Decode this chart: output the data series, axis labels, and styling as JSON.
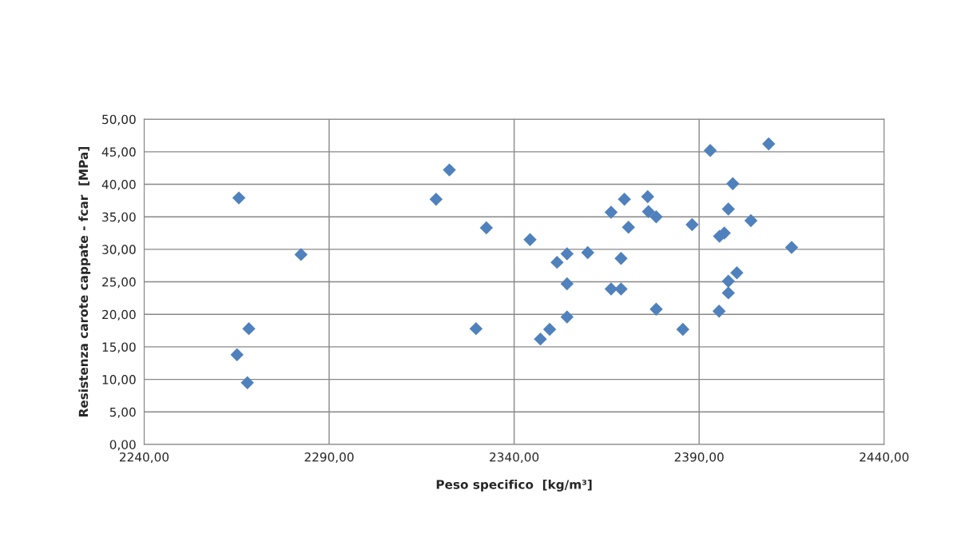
{
  "chart_data": {
    "type": "scatter",
    "xlabel": "Peso specifico  [kg/m³]",
    "ylabel": "Resistenza carote cappate - fcar  [MPa]",
    "series": [
      {
        "color": "#4f81bd",
        "x": [
          2265.6,
          2282.4,
          2268.3,
          2265.1,
          2267.9,
          2322.5,
          2318.9,
          2332.5,
          2344.3,
          2354.3,
          2351.6,
          2359.9,
          2354.3,
          2354.3,
          2349.6,
          2347.1,
          2329.7,
          2366.2,
          2369.8,
          2376.1,
          2376.3,
          2378.4,
          2370.9,
          2368.9,
          2366.2,
          2368.9,
          2378.4,
          2385.6,
          2388.1,
          2393.0,
          2408.8,
          2399.1,
          2397.9,
          2404.0,
          2396.8,
          2395.5,
          2415.0,
          2400.2,
          2397.9,
          2397.9,
          2395.4
        ],
        "values": [
          37.9,
          29.2,
          17.8,
          13.8,
          9.5,
          42.2,
          37.7,
          33.3,
          31.5,
          29.3,
          28.0,
          29.5,
          24.7,
          19.6,
          17.7,
          16.2,
          17.8,
          35.7,
          37.7,
          38.1,
          35.8,
          35.0,
          33.4,
          28.6,
          23.9,
          23.9,
          20.8,
          17.7,
          33.8,
          45.2,
          46.2,
          40.1,
          36.2,
          34.4,
          32.5,
          32.0,
          30.3,
          26.4,
          25.1,
          23.3,
          20.5
        ]
      }
    ],
    "marker": "diamond",
    "grid": true,
    "xlim": [
      2240,
      2440
    ],
    "xticks": [
      {
        "value": 2240,
        "label": "2240,00"
      },
      {
        "value": 2290,
        "label": "2290,00"
      },
      {
        "value": 2340,
        "label": "2340,00"
      },
      {
        "value": 2390,
        "label": "2390,00"
      },
      {
        "value": 2440,
        "label": "2440,00"
      }
    ],
    "ylim": [
      0,
      50
    ],
    "yticks": [
      {
        "value": 0,
        "label": "0,00"
      },
      {
        "value": 5,
        "label": "5,00"
      },
      {
        "value": 10,
        "label": "10,00"
      },
      {
        "value": 15,
        "label": "15,00"
      },
      {
        "value": 20,
        "label": "20,00"
      },
      {
        "value": 25,
        "label": "25,00"
      },
      {
        "value": 30,
        "label": "30,00"
      },
      {
        "value": 35,
        "label": "35,00"
      },
      {
        "value": 40,
        "label": "40,00"
      },
      {
        "value": 45,
        "label": "45,00"
      },
      {
        "value": 50,
        "label": "50,00"
      }
    ]
  }
}
